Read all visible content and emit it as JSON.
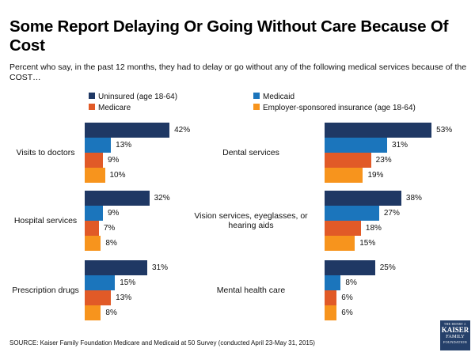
{
  "title": "Some Report Delaying Or Going Without Care Because Of Cost",
  "subtitle": "Percent who say, in the past 12 months, they had to delay or go without any of the following medical services because of the COST…",
  "legend": [
    {
      "label": "Uninsured (age 18-64)",
      "color": "#1f3864"
    },
    {
      "label": "Medicaid",
      "color": "#1b75bc"
    },
    {
      "label": "Medicare",
      "color": "#e15a27"
    },
    {
      "label": "Employer-sponsored insurance (age 18-64)",
      "color": "#f7941d"
    }
  ],
  "chart_data": {
    "type": "bar",
    "orientation": "horizontal",
    "title": "Some Report Delaying Or Going Without Care Because Of Cost",
    "unit": "%",
    "series": [
      "Uninsured (age 18-64)",
      "Medicaid",
      "Medicare",
      "Employer-sponsored insurance (age 18-64)"
    ],
    "groups": [
      {
        "category": "Visits to doctors",
        "values": [
          42,
          13,
          9,
          10
        ],
        "labels": [
          "42%",
          "13%",
          "9%",
          "10%"
        ]
      },
      {
        "category": "Dental services",
        "values": [
          53,
          31,
          23,
          19
        ],
        "labels": [
          "53%",
          "31%",
          "23%",
          "19%"
        ]
      },
      {
        "category": "Hospital services",
        "values": [
          32,
          9,
          7,
          8
        ],
        "labels": [
          "32%",
          "9%",
          "7%",
          "8%"
        ]
      },
      {
        "category": "Vision services, eyeglasses, or hearing aids",
        "values": [
          38,
          27,
          18,
          15
        ],
        "labels": [
          "38%",
          "27%",
          "18%",
          "15%"
        ]
      },
      {
        "category": "Prescription drugs",
        "values": [
          31,
          15,
          13,
          8
        ],
        "labels": [
          "31%",
          "15%",
          "13%",
          "8%"
        ]
      },
      {
        "category": "Mental health care",
        "values": [
          25,
          8,
          6,
          6
        ],
        "labels": [
          "25%",
          "8%",
          "6%",
          "6%"
        ]
      }
    ]
  },
  "source": "SOURCE: Kaiser Family Foundation Medicare and Medicaid at 50 Survey (conducted April 23-May 31, 2015)",
  "logo": {
    "line1": "THE HENRY J.",
    "line2": "KAISER",
    "line3": "FAMILY",
    "line4": "FOUNDATION"
  }
}
